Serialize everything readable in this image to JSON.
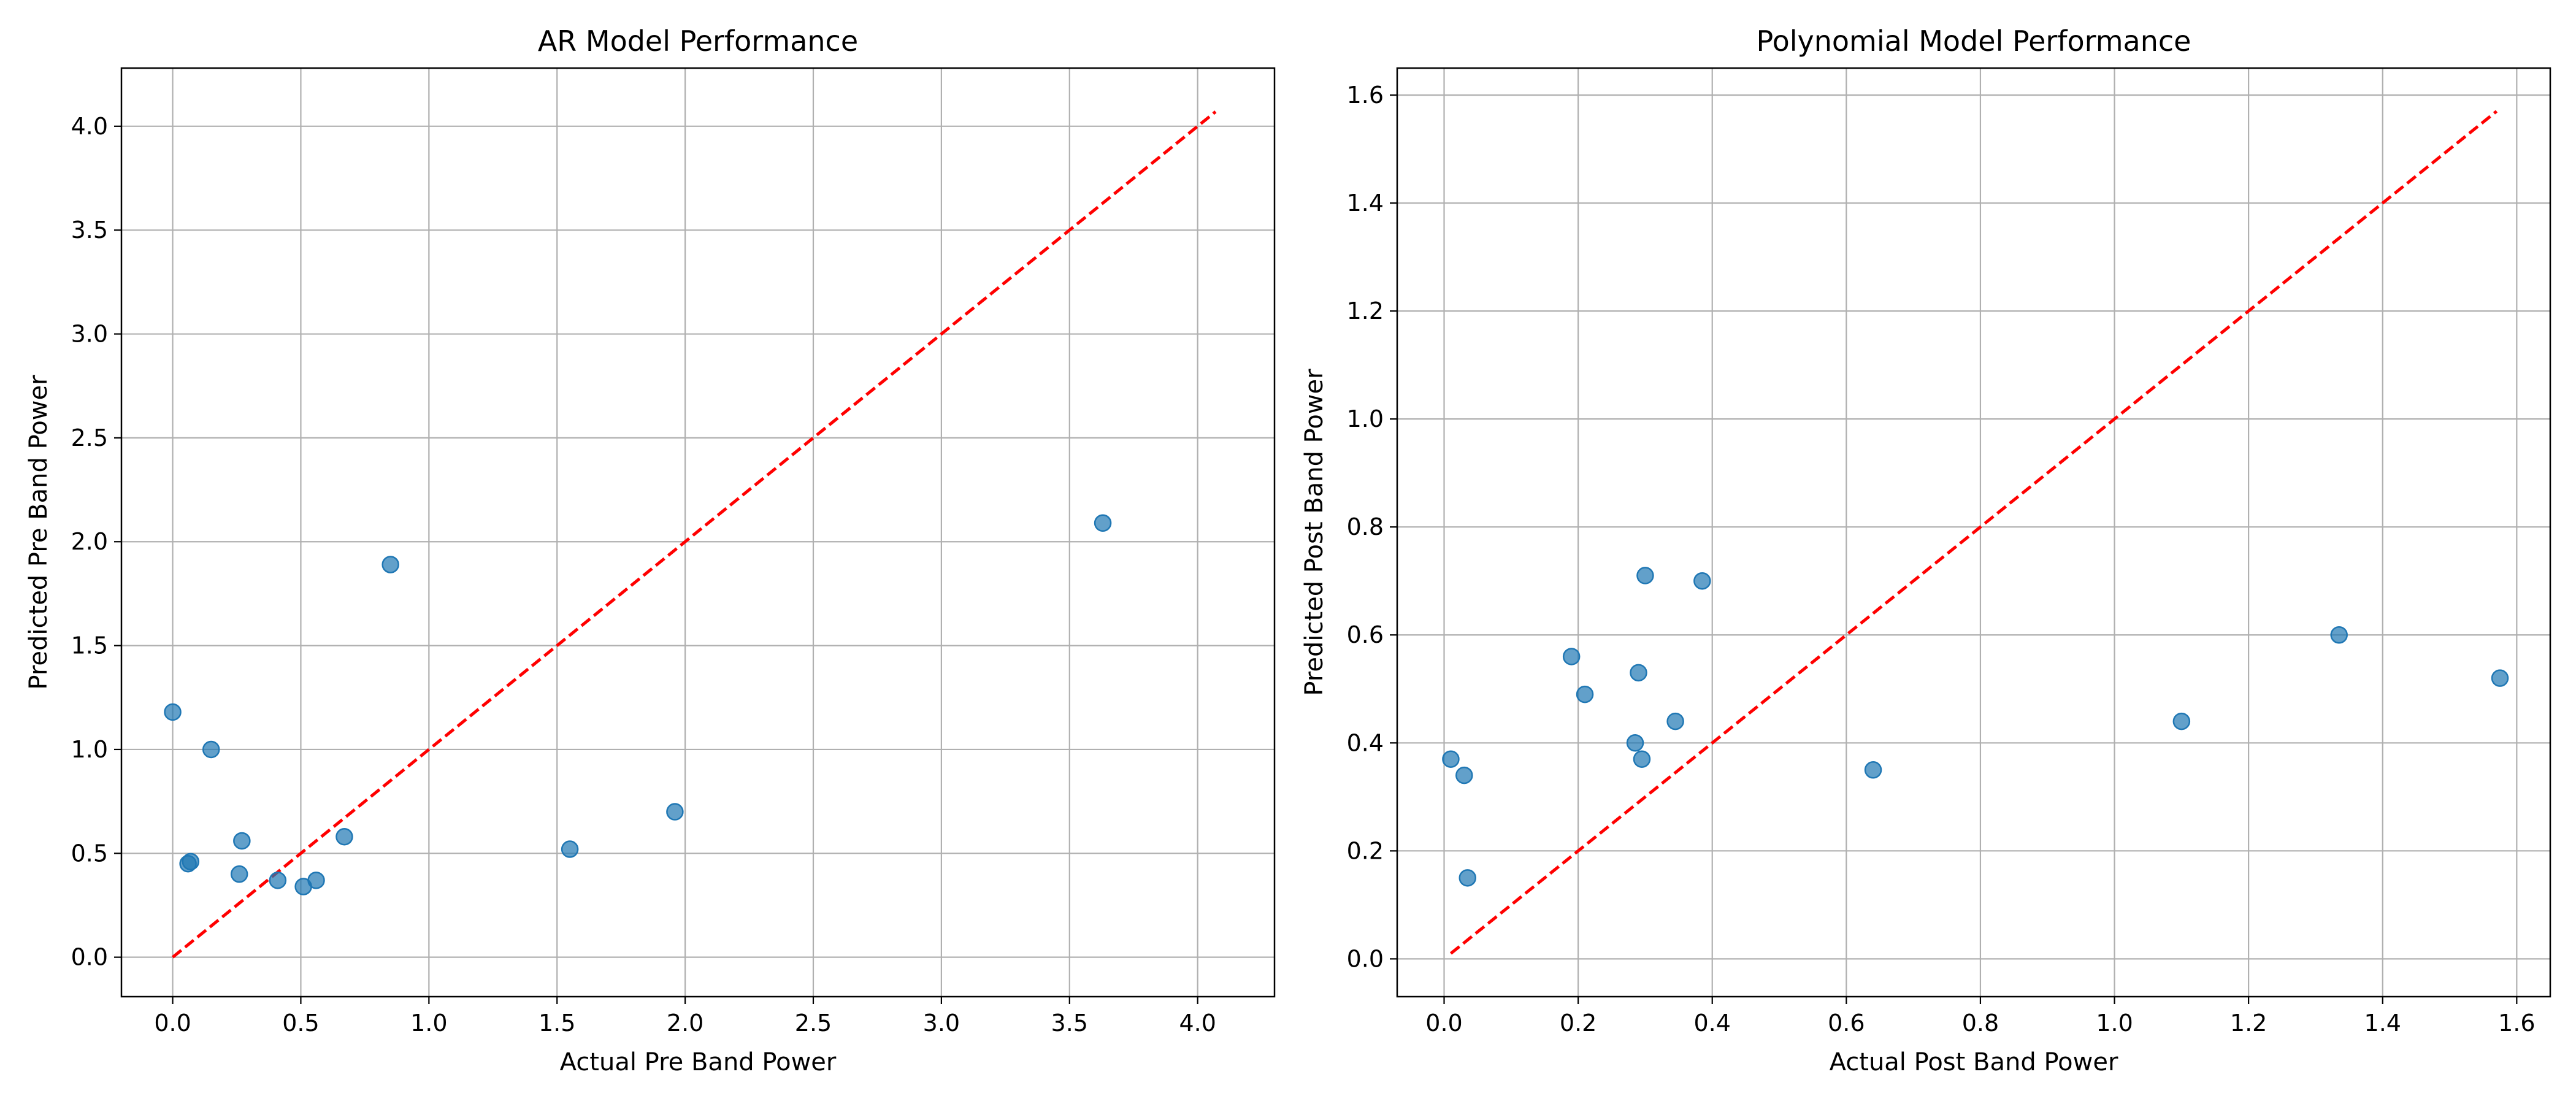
{
  "chart_data": [
    {
      "type": "scatter",
      "title": "AR Model Performance",
      "xlabel": "Actual Pre Band Power",
      "ylabel": "Predicted Pre Band Power",
      "xlim": [
        -0.2,
        4.3
      ],
      "ylim": [
        -0.19,
        4.28
      ],
      "xticks": [
        "0.0",
        "0.5",
        "1.0",
        "1.5",
        "2.0",
        "2.5",
        "3.0",
        "3.5",
        "4.0"
      ],
      "yticks": [
        "0.0",
        "0.5",
        "1.0",
        "1.5",
        "2.0",
        "2.5",
        "3.0",
        "3.5",
        "4.0"
      ],
      "grid": true,
      "point_color": "#1f77b4",
      "reference_line": {
        "style": "dashed",
        "color": "#ff0000",
        "x": [
          0.0,
          4.07
        ],
        "y": [
          0.0,
          4.07
        ]
      },
      "points": [
        {
          "x": 0.0,
          "y": 1.18
        },
        {
          "x": 0.06,
          "y": 0.45
        },
        {
          "x": 0.07,
          "y": 0.46
        },
        {
          "x": 0.15,
          "y": 1.0
        },
        {
          "x": 0.26,
          "y": 0.4
        },
        {
          "x": 0.27,
          "y": 0.56
        },
        {
          "x": 0.41,
          "y": 0.37
        },
        {
          "x": 0.51,
          "y": 0.34
        },
        {
          "x": 0.56,
          "y": 0.37
        },
        {
          "x": 0.67,
          "y": 0.58
        },
        {
          "x": 0.85,
          "y": 1.89
        },
        {
          "x": 1.55,
          "y": 0.52
        },
        {
          "x": 1.96,
          "y": 0.7
        },
        {
          "x": 3.63,
          "y": 2.09
        }
      ]
    },
    {
      "type": "scatter",
      "title": "Polynomial Model Performance",
      "xlabel": "Actual Post Band Power",
      "ylabel": "Predicted Post Band Power",
      "xlim": [
        -0.07,
        1.65
      ],
      "ylim": [
        -0.07,
        1.65
      ],
      "xticks": [
        "0.0",
        "0.2",
        "0.4",
        "0.6",
        "0.8",
        "1.0",
        "1.2",
        "1.4",
        "1.6"
      ],
      "yticks": [
        "0.0",
        "0.2",
        "0.4",
        "0.6",
        "0.8",
        "1.0",
        "1.2",
        "1.4",
        "1.6"
      ],
      "grid": true,
      "point_color": "#1f77b4",
      "reference_line": {
        "style": "dashed",
        "color": "#ff0000",
        "x": [
          0.01,
          1.57
        ],
        "y": [
          0.01,
          1.57
        ]
      },
      "points": [
        {
          "x": 0.01,
          "y": 0.37
        },
        {
          "x": 0.03,
          "y": 0.34
        },
        {
          "x": 0.035,
          "y": 0.15
        },
        {
          "x": 0.19,
          "y": 0.56
        },
        {
          "x": 0.21,
          "y": 0.49
        },
        {
          "x": 0.285,
          "y": 0.4
        },
        {
          "x": 0.29,
          "y": 0.53
        },
        {
          "x": 0.295,
          "y": 0.37
        },
        {
          "x": 0.3,
          "y": 0.71
        },
        {
          "x": 0.345,
          "y": 0.44
        },
        {
          "x": 0.385,
          "y": 0.7
        },
        {
          "x": 0.64,
          "y": 0.35
        },
        {
          "x": 1.1,
          "y": 0.44
        },
        {
          "x": 1.335,
          "y": 0.6
        },
        {
          "x": 1.575,
          "y": 0.52
        }
      ]
    }
  ]
}
